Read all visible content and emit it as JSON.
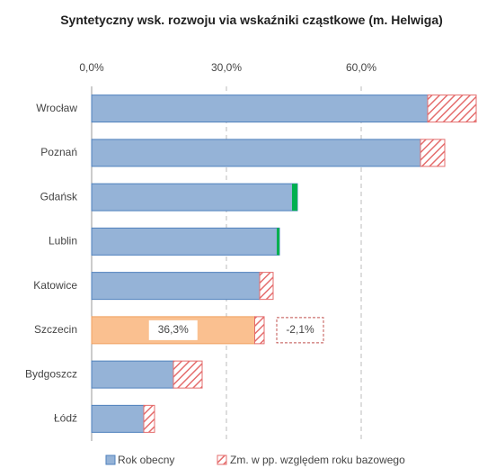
{
  "chart_data": {
    "type": "bar",
    "orientation": "horizontal",
    "title": "Syntetyczny wsk. rozwoju via wskaźniki cząstkowe (m. Helwiga)",
    "categories": [
      "Wrocław",
      "Poznań",
      "Gdańsk",
      "Lublin",
      "Katowice",
      "Szczecin",
      "Bydgoszcz",
      "Łódź"
    ],
    "series": [
      {
        "name": "Rok obecny",
        "color": "#95b3d7",
        "values": [
          74.8,
          73.2,
          45.8,
          41.8,
          37.4,
          36.3,
          18.2,
          11.6
        ],
        "value_labels": [
          null,
          null,
          null,
          null,
          null,
          "36,3%",
          null,
          null
        ]
      },
      {
        "name": "Zm. w pp. względem roku bazowego",
        "color": "#e46c6c",
        "positive_color": "#00b050",
        "values": [
          -10.8,
          -5.4,
          1.2,
          0.6,
          -3.0,
          -2.1,
          -6.4,
          -2.4
        ],
        "value_labels": [
          null,
          null,
          null,
          null,
          null,
          "-2,1%",
          null,
          null
        ]
      }
    ],
    "highlight": {
      "category": "Szczecin",
      "color": "#fac090"
    },
    "xlim": [
      0,
      86
    ],
    "xticks": [
      {
        "value": 0,
        "label": "0,0%"
      },
      {
        "value": 30,
        "label": "30,0%"
      },
      {
        "value": 60,
        "label": "60,0%"
      }
    ],
    "grid": true,
    "legend": "bottom"
  }
}
